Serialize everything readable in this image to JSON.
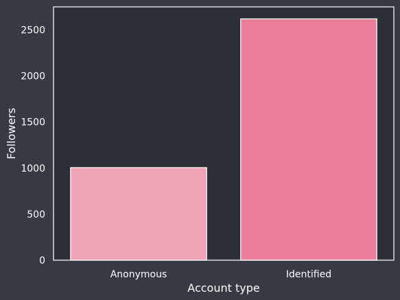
{
  "chart_data": {
    "type": "bar",
    "categories": [
      "Anonymous",
      "Identified"
    ],
    "values": [
      1005,
      2620
    ],
    "xlabel": "Account type",
    "ylabel": "Followers",
    "ylim": [
      0,
      2750
    ],
    "yticks": [
      0,
      500,
      1000,
      1500,
      2000,
      2500
    ],
    "grid": false,
    "legend": "none",
    "colors": {
      "page_background": "#363a42",
      "plot_background": "#2b2f36",
      "bars": [
        "#f0a3b5",
        "#ea7d98"
      ],
      "bar_edge": "#ffffff",
      "frame": "#ffffff",
      "text": "#ffffff"
    }
  }
}
